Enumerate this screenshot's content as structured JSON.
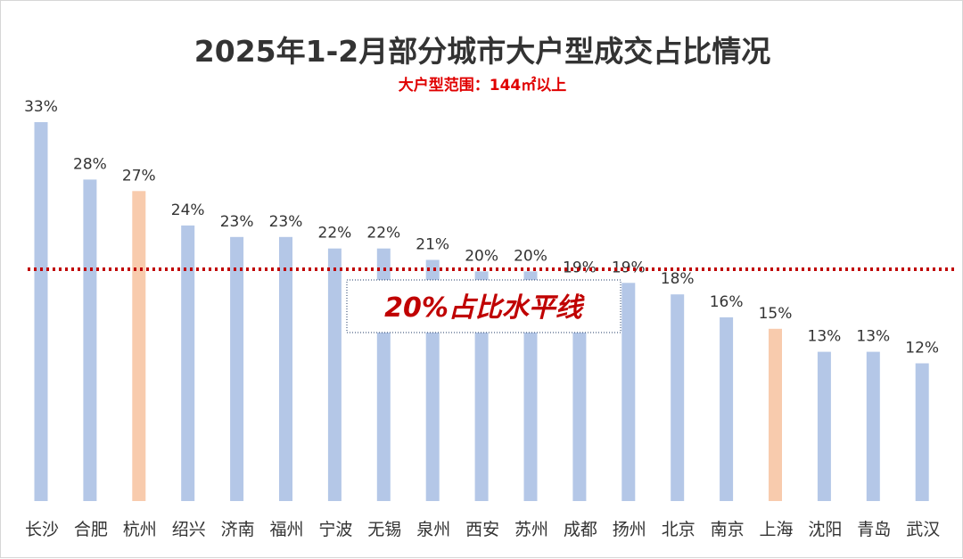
{
  "chart_data": {
    "type": "bar",
    "title": "2025年1-2月部分城市大户型成交占比情况",
    "subtitle": "大户型范围：144㎡以上",
    "categories": [
      "长沙",
      "合肥",
      "杭州",
      "绍兴",
      "济南",
      "福州",
      "宁波",
      "无锡",
      "泉州",
      "西安",
      "苏州",
      "成都",
      "扬州",
      "北京",
      "南京",
      "上海",
      "沈阳",
      "青岛",
      "武汉"
    ],
    "values": [
      33,
      28,
      27,
      24,
      23,
      23,
      22,
      22,
      21,
      20,
      20,
      19,
      19,
      18,
      16,
      15,
      13,
      13,
      12
    ],
    "data_labels": [
      "33%",
      "28%",
      "27%",
      "24%",
      "23%",
      "23%",
      "22%",
      "22%",
      "21%",
      "20%",
      "20%",
      "19%",
      "19%",
      "18%",
      "16%",
      "15%",
      "13%",
      "13%",
      "12%"
    ],
    "highlight": [
      "杭州",
      "上海"
    ],
    "reference_line": {
      "value": 20,
      "label": "20%占比水平线"
    },
    "ylim": [
      0,
      33
    ],
    "grid": false,
    "colors": {
      "bar": "#b4c7e7",
      "highlight": "#f8cbad",
      "reference_line": "#c00000",
      "subtitle": "#e00000",
      "reference_label": "#c00000",
      "reference_box_border": "#1f3864",
      "text": "#333333"
    }
  }
}
